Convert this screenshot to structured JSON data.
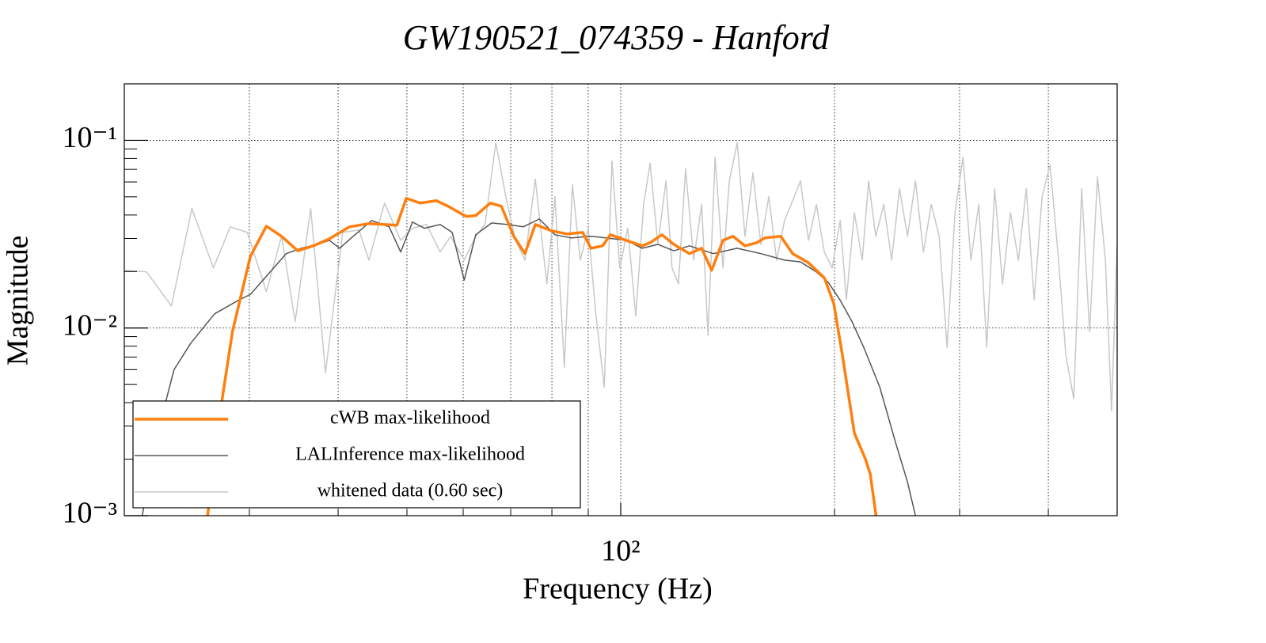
{
  "chart_data": {
    "type": "line",
    "title": "GW190521_074359 - Hanford",
    "x_label": "Frequency (Hz)",
    "y_label": "Magnitude",
    "xscale": "log",
    "yscale": "log",
    "xlim": [
      20,
      500
    ],
    "ylim": [
      0.001,
      0.2
    ],
    "xticks": [
      {
        "value": 100,
        "label": "10²"
      }
    ],
    "xminor": [
      30,
      40,
      50,
      60,
      70,
      80,
      90,
      200,
      300,
      400
    ],
    "yticks": [
      {
        "value": 0.001,
        "label": "10⁻³"
      },
      {
        "value": 0.01,
        "label": "10⁻²"
      },
      {
        "value": 0.1,
        "label": "10⁻¹"
      }
    ],
    "yminor": [
      0.002,
      0.003,
      0.004,
      0.005,
      0.006,
      0.007,
      0.008,
      0.009,
      0.02,
      0.03,
      0.04,
      0.05,
      0.06,
      0.07,
      0.08,
      0.09,
      0.2
    ],
    "grid": true,
    "legend_position": "lower left",
    "series": [
      {
        "name": "cWB max-likelihood",
        "color": "#ff7f0e",
        "x": [
          26.2,
          27.2,
          28.4,
          30.1,
          31.7,
          33.3,
          35.1,
          36.9,
          38.9,
          41.5,
          44.2,
          48.4,
          49.9,
          52.2,
          55.0,
          57.1,
          60.6,
          62.5,
          65.5,
          67.9,
          70.7,
          73.3,
          75.8,
          79.8,
          84.0,
          88.4,
          90.8,
          94.3,
          96.7,
          101.8,
          107.2,
          110.0,
          114.3,
          118.8,
          125.0,
          130.0,
          134.3,
          139.3,
          143.9,
          149.6,
          155.5,
          159.5,
          168.0,
          174.6,
          183.7,
          193.5,
          199.5,
          205.2,
          213.3,
          221.0,
          224.6,
          228.8
        ],
        "values": [
          0.001,
          0.00328,
          0.00957,
          0.0241,
          0.0349,
          0.0308,
          0.0258,
          0.0274,
          0.0299,
          0.0346,
          0.036,
          0.0353,
          0.0491,
          0.0463,
          0.0477,
          0.0446,
          0.0393,
          0.0397,
          0.0463,
          0.0446,
          0.0308,
          0.0249,
          0.0356,
          0.033,
          0.0317,
          0.0323,
          0.0266,
          0.0274,
          0.0314,
          0.0293,
          0.0274,
          0.0285,
          0.0314,
          0.0279,
          0.0249,
          0.0266,
          0.0203,
          0.0293,
          0.0308,
          0.0274,
          0.0285,
          0.0302,
          0.0308,
          0.0249,
          0.0223,
          0.0185,
          0.0135,
          0.00715,
          0.00275,
          0.00201,
          0.00166,
          0.001
        ]
      },
      {
        "name": "LALInference max-likelihood",
        "color": "#555555",
        "x": [
          21.2,
          22.1,
          23.5,
          24.8,
          26.8,
          29.0,
          30.1,
          32.1,
          33.8,
          35.5,
          37.4,
          38.9,
          40.2,
          42.0,
          44.6,
          47.2,
          49.0,
          50.9,
          52.9,
          55.7,
          57.9,
          60.2,
          62.5,
          65.8,
          69.3,
          72.9,
          76.8,
          80.8,
          85.1,
          90.8,
          95.5,
          101.8,
          107.2,
          112.8,
          118.8,
          125.0,
          135.0,
          145.8,
          157.5,
          170.1,
          179.1,
          188.5,
          196.0,
          203.6,
          211.7,
          219.9,
          231.6,
          243.8,
          253.4,
          260.0
        ],
        "values": [
          0.001,
          0.00245,
          0.006,
          0.00828,
          0.0119,
          0.0141,
          0.0151,
          0.0199,
          0.0249,
          0.0266,
          0.0279,
          0.0293,
          0.0266,
          0.0308,
          0.0374,
          0.0346,
          0.0254,
          0.0367,
          0.034,
          0.0356,
          0.0323,
          0.018,
          0.0314,
          0.0363,
          0.0356,
          0.0346,
          0.0381,
          0.0314,
          0.0302,
          0.0308,
          0.0302,
          0.0293,
          0.0266,
          0.0279,
          0.0258,
          0.0274,
          0.0249,
          0.0266,
          0.0249,
          0.023,
          0.0225,
          0.0199,
          0.0175,
          0.0141,
          0.0108,
          0.00788,
          0.00484,
          0.00245,
          0.00151,
          0.001
        ]
      },
      {
        "name": "whitened data (0.60 sec)",
        "color": "#c8c8c8",
        "x": [
          20.0,
          21.5,
          23.3,
          24.9,
          26.7,
          28.2,
          29.8,
          31.7,
          33.3,
          34.8,
          36.6,
          38.4,
          40.6,
          42.8,
          44.2,
          46.5,
          49.0,
          50.9,
          53.3,
          55.7,
          57.6,
          60.2,
          62.5,
          64.4,
          66.7,
          68.9,
          71.1,
          73.3,
          75.8,
          78.7,
          80.8,
          83.3,
          85.5,
          87.7,
          90.0,
          92.3,
          94.8,
          97.2,
          99.7,
          102.3,
          105.0,
          107.7,
          110.0,
          112.8,
          115.8,
          118.1,
          120.6,
          123.4,
          126.7,
          130.0,
          132.7,
          135.8,
          139.3,
          142.2,
          145.9,
          149.6,
          153.5,
          157.5,
          161.6,
          165.8,
          170.1,
          174.6,
          179.1,
          183.8,
          188.6,
          193.5,
          198.5,
          203.7,
          207.8,
          213.3,
          218.8,
          223.4,
          228.6,
          234.6,
          240.7,
          246.9,
          253.4,
          260.0,
          266.8,
          273.7,
          280.8,
          288.1,
          295.6,
          303.3,
          311.2,
          319.3,
          327.6,
          336.1,
          344.8,
          353.8,
          363.0,
          372.4,
          382.1,
          392.0,
          402.2,
          412.6,
          423.4,
          434.4,
          445.7,
          457.3,
          469.1,
          481.3,
          491.0,
          500
        ],
        "values": [
          0.0203,
          0.0199,
          0.0131,
          0.0433,
          0.0209,
          0.0346,
          0.0323,
          0.0156,
          0.0308,
          0.0108,
          0.0433,
          0.00577,
          0.0323,
          0.0333,
          0.023,
          0.0463,
          0.0293,
          0.034,
          0.0356,
          0.0254,
          0.0308,
          0.023,
          0.0308,
          0.0356,
          0.0971,
          0.0501,
          0.0293,
          0.023,
          0.0621,
          0.0172,
          0.0501,
          0.00618,
          0.058,
          0.023,
          0.034,
          0.0116,
          0.00484,
          0.0776,
          0.0209,
          0.034,
          0.0116,
          0.0455,
          0.0754,
          0.0279,
          0.0608,
          0.0209,
          0.0172,
          0.0705,
          0.023,
          0.0455,
          0.00912,
          0.0815,
          0.0209,
          0.0608,
          0.0971,
          0.0308,
          0.0671,
          0.0279,
          0.0501,
          0.023,
          0.0374,
          0.0477,
          0.0608,
          0.0293,
          0.0455,
          0.0254,
          0.0209,
          0.0374,
          0.0141,
          0.0412,
          0.023,
          0.0608,
          0.0308,
          0.0455,
          0.023,
          0.0552,
          0.0308,
          0.0608,
          0.0254,
          0.0455,
          0.0308,
          0.00788,
          0.0412,
          0.0815,
          0.023,
          0.0455,
          0.00788,
          0.0552,
          0.0172,
          0.0412,
          0.023,
          0.0552,
          0.0141,
          0.0501,
          0.074,
          0.0254,
          0.00715,
          0.00419,
          0.0552,
          0.00957,
          0.0639,
          0.023,
          0.00361,
          0.0279
        ]
      }
    ]
  }
}
